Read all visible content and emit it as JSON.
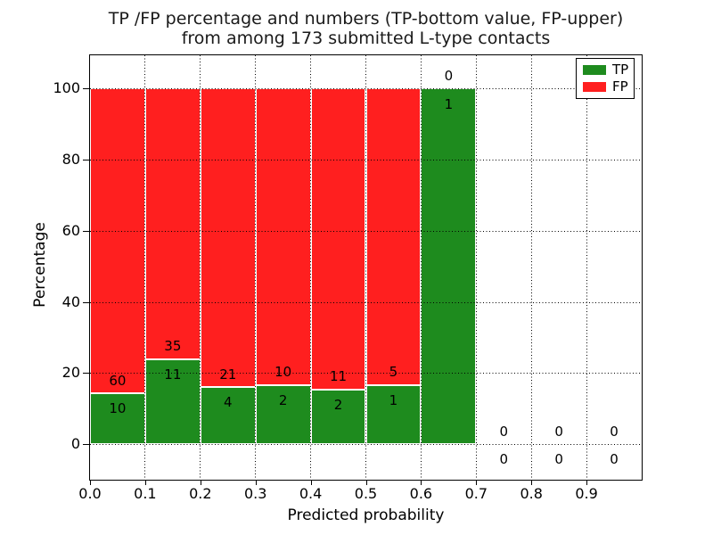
{
  "figure": {
    "title_line1": "TP /FP percentage and numbers (TP-bottom value, FP-upper)",
    "title_line2": "from among 173 submitted L-type contacts",
    "xlabel": "Predicted probability",
    "ylabel": "Percentage"
  },
  "legend": {
    "position": "upper right",
    "items": [
      {
        "label": "TP",
        "color": "#1e8b1e"
      },
      {
        "label": "FP",
        "color": "#ff1f1f"
      }
    ]
  },
  "chart_data": {
    "type": "bar",
    "stacked": true,
    "title": "TP /FP percentage and numbers (TP-bottom value, FP-upper)\nfrom among 173 submitted L-type contacts",
    "xlabel": "Predicted probability",
    "ylabel": "Percentage",
    "xlim": [
      0.0,
      1.0
    ],
    "ylim": [
      -10,
      110
    ],
    "x_ticks": [
      "0.0",
      "0.1",
      "0.2",
      "0.3",
      "0.4",
      "0.5",
      "0.6",
      "0.7",
      "0.8",
      "0.9"
    ],
    "y_ticks": [
      0,
      20,
      40,
      60,
      80,
      100
    ],
    "grid": "dotted",
    "legend_position": "upper right",
    "total_submitted": 173,
    "bar_value_semantics": "Bar heights are percentages: green = TP/(TP+FP)*100, red stacked to 100%. Numeric labels are raw counts: TP count below boundary, FP count above boundary.",
    "bins": [
      {
        "x_start": 0.0,
        "x_end": 0.1,
        "tp": 10,
        "fp": 60
      },
      {
        "x_start": 0.1,
        "x_end": 0.2,
        "tp": 11,
        "fp": 35
      },
      {
        "x_start": 0.2,
        "x_end": 0.3,
        "tp": 4,
        "fp": 21
      },
      {
        "x_start": 0.3,
        "x_end": 0.4,
        "tp": 2,
        "fp": 10
      },
      {
        "x_start": 0.4,
        "x_end": 0.5,
        "tp": 2,
        "fp": 11
      },
      {
        "x_start": 0.5,
        "x_end": 0.6,
        "tp": 1,
        "fp": 5
      },
      {
        "x_start": 0.6,
        "x_end": 0.7,
        "tp": 1,
        "fp": 0
      },
      {
        "x_start": 0.7,
        "x_end": 0.8,
        "tp": 0,
        "fp": 0
      },
      {
        "x_start": 0.8,
        "x_end": 0.9,
        "tp": 0,
        "fp": 0
      },
      {
        "x_start": 0.9,
        "x_end": 1.0,
        "tp": 0,
        "fp": 0
      }
    ],
    "series": [
      {
        "name": "TP",
        "color": "#1e8b1e",
        "counts": [
          10,
          11,
          4,
          2,
          2,
          1,
          1,
          0,
          0,
          0
        ]
      },
      {
        "name": "FP",
        "color": "#ff1f1f",
        "counts": [
          60,
          35,
          21,
          10,
          11,
          5,
          0,
          0,
          0,
          0
        ]
      }
    ]
  }
}
